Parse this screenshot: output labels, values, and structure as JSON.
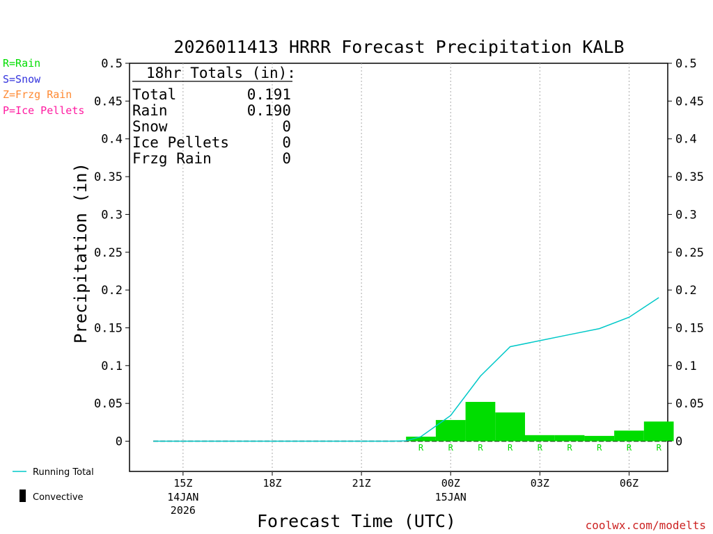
{
  "chart_data": {
    "type": "bar",
    "title": "2026011413 HRRR Forecast Precipitation KALB",
    "xlabel": "Forecast Time (UTC)",
    "ylabel": "Precipitation (in)",
    "ylim": [
      -0.04,
      0.5
    ],
    "y_ticks": [
      "0",
      "0.05",
      "0.1",
      "0.15",
      "0.2",
      "0.25",
      "0.3",
      "0.35",
      "0.4",
      "0.45",
      "0.5"
    ],
    "x_range_hours": [
      13.2,
      31.3
    ],
    "x_ticks": [
      {
        "hour": 15,
        "label": "15Z",
        "date": "14JAN",
        "year": "2026"
      },
      {
        "hour": 18,
        "label": "18Z",
        "date": "",
        "year": ""
      },
      {
        "hour": 21,
        "label": "21Z",
        "date": "",
        "year": ""
      },
      {
        "hour": 24,
        "label": "00Z",
        "date": "15JAN",
        "year": ""
      },
      {
        "hour": 27,
        "label": "03Z",
        "date": "",
        "year": ""
      },
      {
        "hour": 30,
        "label": "06Z",
        "date": "",
        "year": ""
      }
    ],
    "hourly_precip": {
      "name": "Hourly Precipitation (Rain)",
      "hours": [
        23,
        24,
        25,
        26,
        27,
        28,
        29,
        30,
        31
      ],
      "values": [
        0.006,
        0.028,
        0.052,
        0.038,
        0.008,
        0.008,
        0.007,
        0.014,
        0.026
      ],
      "ptype": [
        "R",
        "R",
        "R",
        "R",
        "R",
        "R",
        "R",
        "R",
        "R"
      ]
    },
    "running_total": {
      "name": "Running Total",
      "hours": [
        14,
        15,
        16,
        17,
        18,
        19,
        20,
        21,
        22,
        22.5,
        23,
        24,
        25,
        26,
        27,
        28,
        29,
        30,
        31
      ],
      "values": [
        0,
        0,
        0,
        0,
        0,
        0,
        0,
        0,
        0,
        0.0005,
        0.006,
        0.034,
        0.086,
        0.125,
        0.133,
        0.141,
        0.149,
        0.164,
        0.19
      ]
    },
    "totals_box": {
      "heading": "18hr Totals (in):",
      "rows": [
        {
          "label": "Total",
          "value": "0.191"
        },
        {
          "label": "Rain",
          "value": "0.190"
        },
        {
          "label": "Snow",
          "value": "0"
        },
        {
          "label": "Ice Pellets",
          "value": "0"
        },
        {
          "label": "Frzg Rain",
          "value": "0"
        }
      ]
    },
    "ptype_legend": [
      {
        "text": "R=Rain",
        "color": "#00dd00"
      },
      {
        "text": "S=Snow",
        "color": "#3333dd"
      },
      {
        "text": "Z=Frzg Rain",
        "color": "#ff8a33"
      },
      {
        "text": "P=Ice Pellets",
        "color": "#ff1aa0"
      }
    ],
    "legend": {
      "running_total": "Running Total",
      "convective": "Convective"
    },
    "credit": "coolwx.com/modelts"
  },
  "colors": {
    "bar": "#00dd00",
    "running_total": "#00c8c8",
    "credit": "#cc2222",
    "grid": "#aaaaaa",
    "axis": "#000000"
  }
}
